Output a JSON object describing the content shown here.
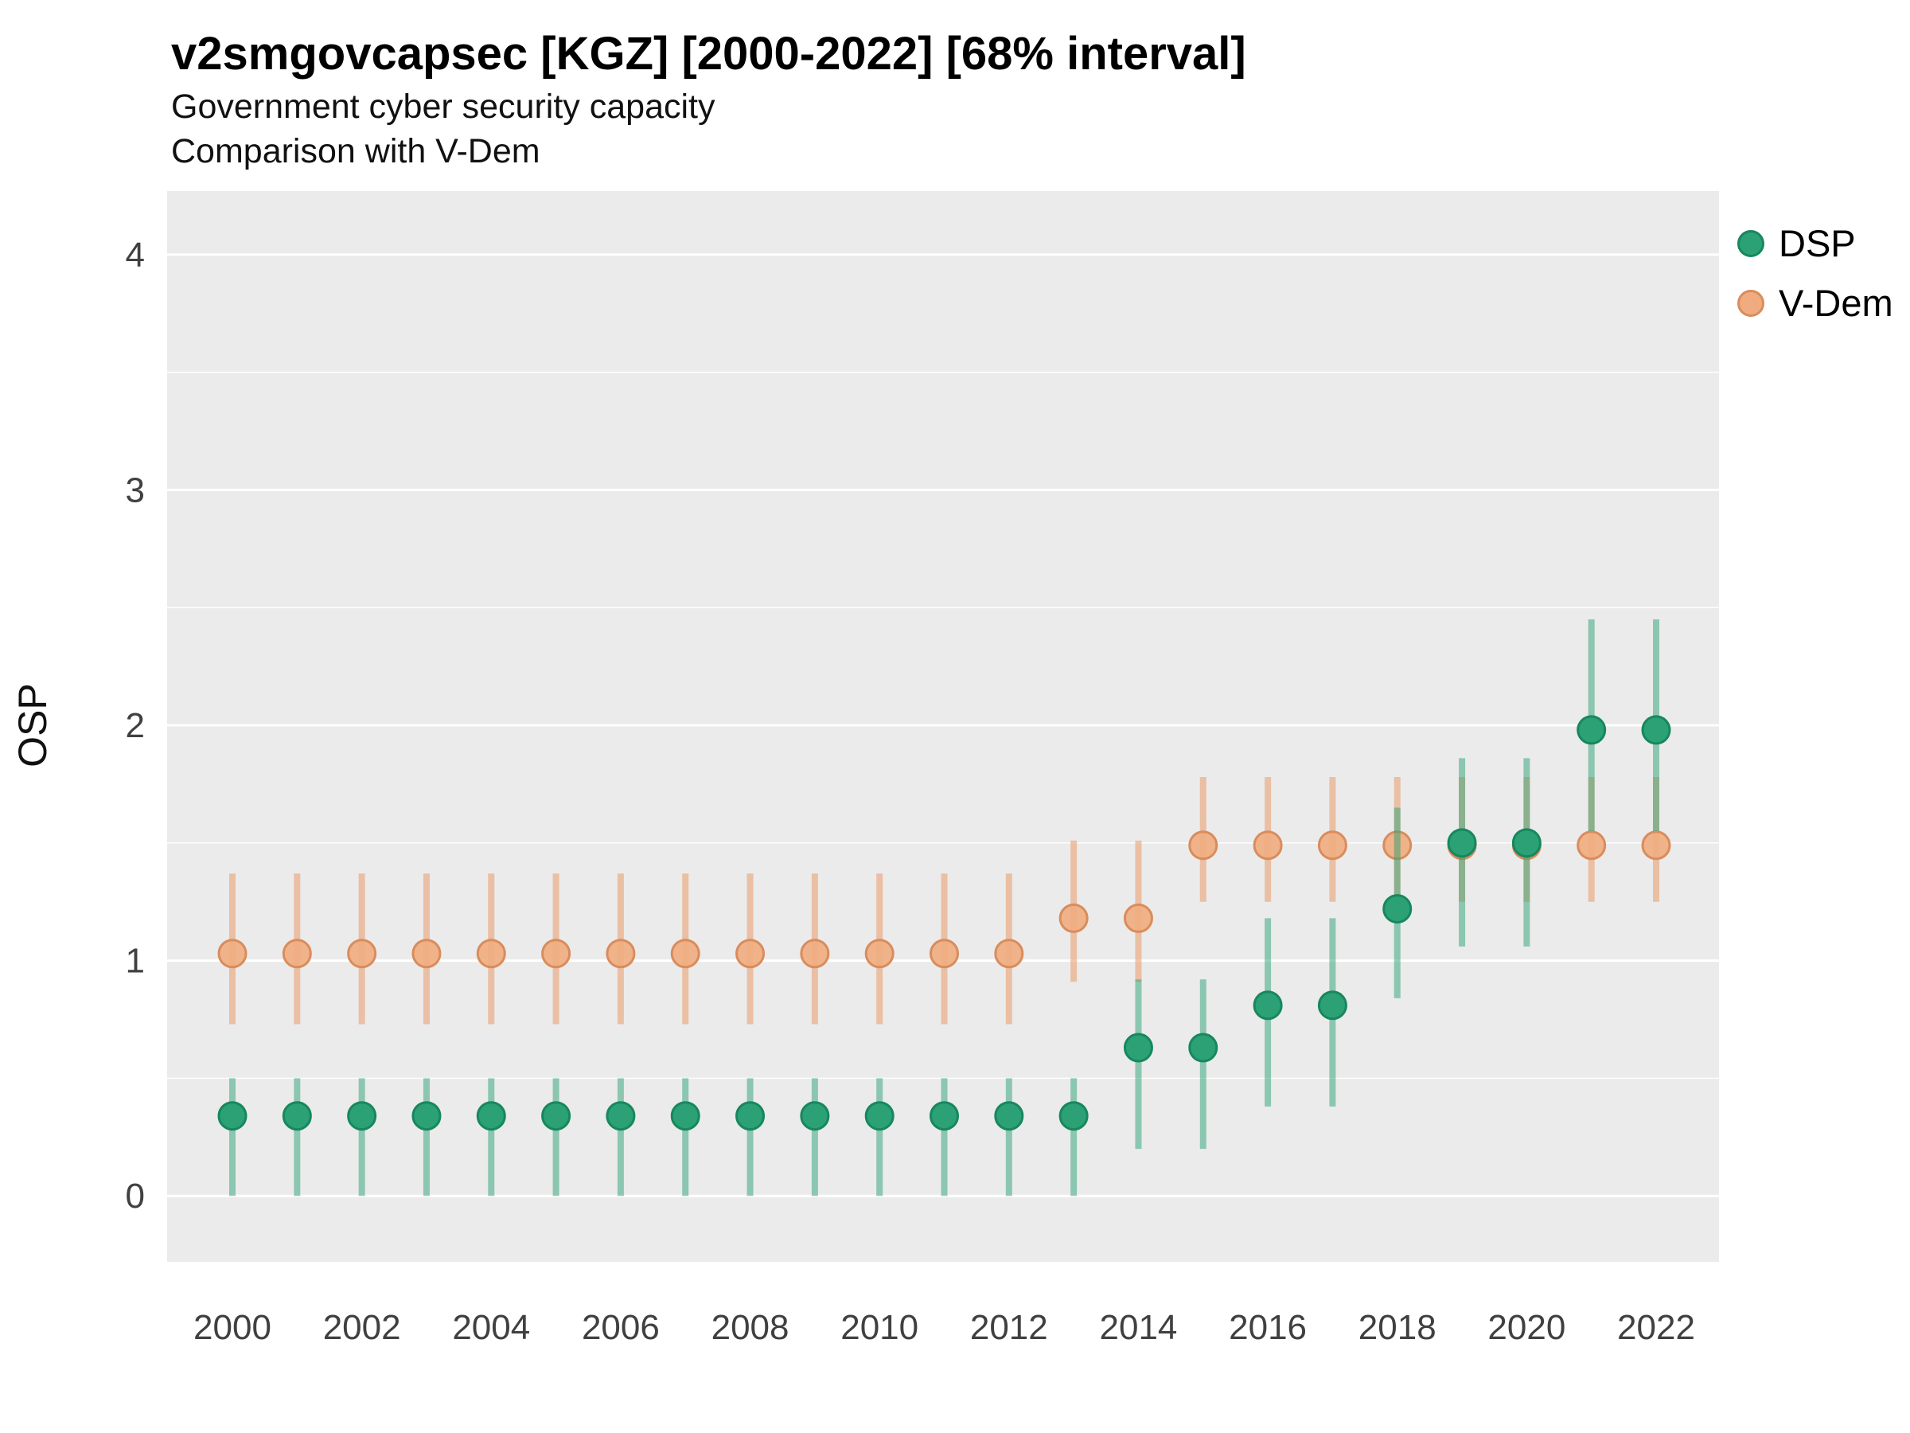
{
  "chart_data": {
    "type": "pointrange",
    "title": "v2smgovcapsec [KGZ] [2000-2022] [68% interval]",
    "subtitle": [
      "Government cyber security capacity",
      "Comparison with V-Dem"
    ],
    "ylabel": "OSP",
    "ylim": [
      -0.28,
      4.27
    ],
    "yticks": [
      0,
      1,
      2,
      3,
      4
    ],
    "xtick_years": [
      2000,
      2002,
      2004,
      2006,
      2008,
      2010,
      2012,
      2014,
      2016,
      2018,
      2020,
      2022
    ],
    "x_range": [
      2000,
      2022
    ],
    "legend_position": "right",
    "panel_background": "#EBEBEB",
    "grid_color": "#FFFFFF",
    "tick_label_color": "#404040",
    "point_format": [
      "year",
      "lower68",
      "value",
      "upper68"
    ],
    "series": [
      {
        "name": "DSP",
        "fill": "#2BA175",
        "stroke": "#17875E",
        "line": "#2BA175",
        "line_alpha": 0.5,
        "dot_alpha": 1,
        "points": [
          [
            2000,
            0.0,
            0.34,
            0.5
          ],
          [
            2001,
            0.0,
            0.34,
            0.5
          ],
          [
            2002,
            0.0,
            0.34,
            0.5
          ],
          [
            2003,
            0.0,
            0.34,
            0.5
          ],
          [
            2004,
            0.0,
            0.34,
            0.5
          ],
          [
            2005,
            0.0,
            0.34,
            0.5
          ],
          [
            2006,
            0.0,
            0.34,
            0.5
          ],
          [
            2007,
            0.0,
            0.34,
            0.5
          ],
          [
            2008,
            0.0,
            0.34,
            0.5
          ],
          [
            2009,
            0.0,
            0.34,
            0.5
          ],
          [
            2010,
            0.0,
            0.34,
            0.5
          ],
          [
            2011,
            0.0,
            0.34,
            0.5
          ],
          [
            2012,
            0.0,
            0.34,
            0.5
          ],
          [
            2013,
            0.0,
            0.34,
            0.5
          ],
          [
            2014,
            0.2,
            0.63,
            0.92
          ],
          [
            2015,
            0.2,
            0.63,
            0.92
          ],
          [
            2016,
            0.38,
            0.81,
            1.18
          ],
          [
            2017,
            0.38,
            0.81,
            1.18
          ],
          [
            2018,
            0.84,
            1.22,
            1.65
          ],
          [
            2019,
            1.06,
            1.5,
            1.86
          ],
          [
            2020,
            1.06,
            1.5,
            1.86
          ],
          [
            2021,
            1.55,
            1.98,
            2.45
          ],
          [
            2022,
            1.55,
            1.98,
            2.45
          ]
        ]
      },
      {
        "name": "V-Dem",
        "fill": "#F0AC80",
        "stroke": "#D98C5C",
        "line": "#E9A273",
        "line_alpha": 0.6,
        "dot_alpha": 0.92,
        "points": [
          [
            2000,
            0.73,
            1.03,
            1.37
          ],
          [
            2001,
            0.73,
            1.03,
            1.37
          ],
          [
            2002,
            0.73,
            1.03,
            1.37
          ],
          [
            2003,
            0.73,
            1.03,
            1.37
          ],
          [
            2004,
            0.73,
            1.03,
            1.37
          ],
          [
            2005,
            0.73,
            1.03,
            1.37
          ],
          [
            2006,
            0.73,
            1.03,
            1.37
          ],
          [
            2007,
            0.73,
            1.03,
            1.37
          ],
          [
            2008,
            0.73,
            1.03,
            1.37
          ],
          [
            2009,
            0.73,
            1.03,
            1.37
          ],
          [
            2010,
            0.73,
            1.03,
            1.37
          ],
          [
            2011,
            0.73,
            1.03,
            1.37
          ],
          [
            2012,
            0.73,
            1.03,
            1.37
          ],
          [
            2013,
            0.91,
            1.18,
            1.51
          ],
          [
            2014,
            0.91,
            1.18,
            1.51
          ],
          [
            2015,
            1.25,
            1.49,
            1.78
          ],
          [
            2016,
            1.25,
            1.49,
            1.78
          ],
          [
            2017,
            1.25,
            1.49,
            1.78
          ],
          [
            2018,
            1.25,
            1.49,
            1.78
          ],
          [
            2019,
            1.25,
            1.49,
            1.78
          ],
          [
            2020,
            1.25,
            1.49,
            1.78
          ],
          [
            2021,
            1.25,
            1.49,
            1.78
          ],
          [
            2022,
            1.25,
            1.49,
            1.78
          ]
        ]
      }
    ]
  }
}
